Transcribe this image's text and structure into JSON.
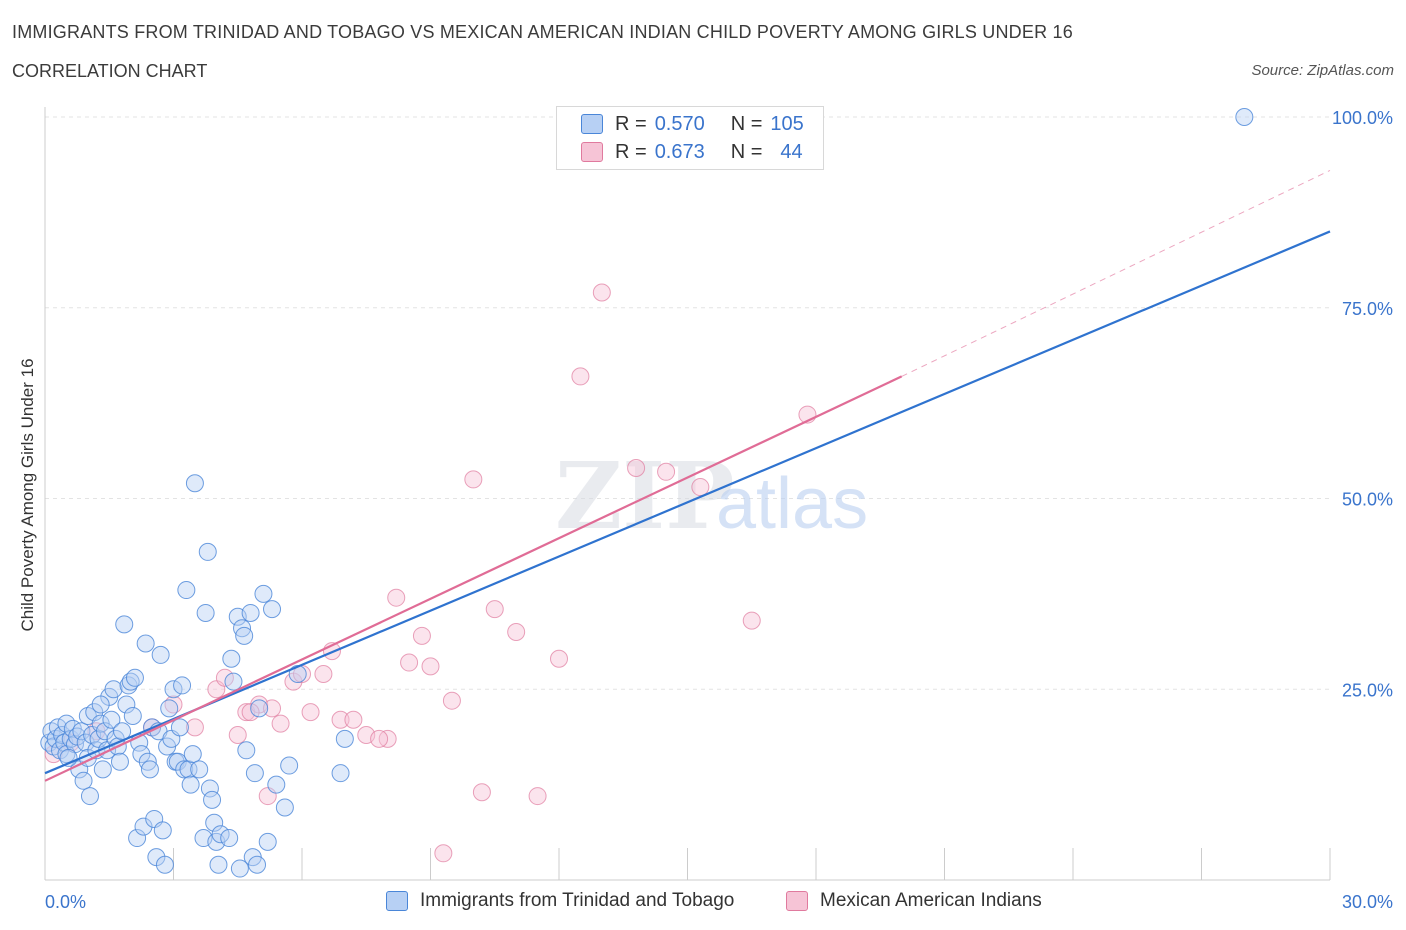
{
  "title": "IMMIGRANTS FROM TRINIDAD AND TOBAGO VS MEXICAN AMERICAN INDIAN CHILD POVERTY AMONG GIRLS UNDER 16",
  "subtitle": "CORRELATION CHART",
  "source": "Source: ZipAtlas.com",
  "watermark": {
    "zip": "ZIP",
    "atlas": "atlas"
  },
  "legend_top": {
    "rows": [
      {
        "r_label": "R = ",
        "r_value": "0.570",
        "n_label": "N = ",
        "n_value": "105"
      },
      {
        "r_label": "R = ",
        "r_value": "0.673",
        "n_label": "N = ",
        "n_value": "44"
      }
    ]
  },
  "chart_data": {
    "type": "scatter",
    "xlabel": "",
    "ylabel": "Child Poverty Among Girls Under 16",
    "xlim": [
      0,
      30
    ],
    "ylim": [
      0,
      100
    ],
    "x_tick_labels": [
      "0.0%",
      "30.0%"
    ],
    "y_tick_labels": [
      "25.0%",
      "50.0%",
      "75.0%",
      "100.0%"
    ],
    "y_ticks": [
      25,
      50,
      75,
      100
    ],
    "grid": true,
    "legend_placement": "bottom",
    "colors": {
      "blue": "#4a86d8",
      "blue_fill": "#b7d0f4",
      "pink": "#e07a9e",
      "pink_fill": "#f6c4d6",
      "blue_line": "#2f73cf",
      "pink_line": "#e06c96",
      "axis_text": "#3a74cc"
    },
    "series": [
      {
        "name": "Immigrants from Trinidad and Tobago",
        "color": "blue",
        "trend": {
          "x0": 0,
          "y0": 14.0,
          "x1": 30,
          "y1": 85.0
        },
        "points": [
          [
            0.1,
            18
          ],
          [
            0.15,
            19.5
          ],
          [
            0.2,
            17.5
          ],
          [
            0.25,
            18.5
          ],
          [
            0.3,
            20
          ],
          [
            0.35,
            17
          ],
          [
            0.4,
            19
          ],
          [
            0.45,
            18
          ],
          [
            0.5,
            16.5
          ],
          [
            0.5,
            20.5
          ],
          [
            0.6,
            18.5
          ],
          [
            0.65,
            19.8
          ],
          [
            0.7,
            17.8
          ],
          [
            0.75,
            18.8
          ],
          [
            0.8,
            14.5
          ],
          [
            0.85,
            19.5
          ],
          [
            0.9,
            13
          ],
          [
            0.95,
            18
          ],
          [
            1.0,
            16
          ],
          [
            1.0,
            21.5
          ],
          [
            1.05,
            11
          ],
          [
            1.1,
            19
          ],
          [
            1.15,
            22
          ],
          [
            1.2,
            17
          ],
          [
            1.25,
            18.5
          ],
          [
            1.3,
            20.5
          ],
          [
            1.35,
            14.5
          ],
          [
            1.4,
            19.5
          ],
          [
            1.45,
            17
          ],
          [
            1.5,
            24
          ],
          [
            1.55,
            21
          ],
          [
            1.6,
            25
          ],
          [
            1.65,
            18.5
          ],
          [
            1.7,
            17.5
          ],
          [
            1.75,
            15.5
          ],
          [
            1.8,
            19.5
          ],
          [
            1.85,
            33.5
          ],
          [
            1.9,
            23
          ],
          [
            1.95,
            25.5
          ],
          [
            2.0,
            26
          ],
          [
            2.05,
            21.5
          ],
          [
            2.1,
            26.5
          ],
          [
            2.15,
            5.5
          ],
          [
            2.2,
            18
          ],
          [
            2.25,
            16.5
          ],
          [
            2.3,
            7
          ],
          [
            2.35,
            31
          ],
          [
            2.4,
            15.5
          ],
          [
            2.45,
            14.5
          ],
          [
            2.5,
            20
          ],
          [
            2.55,
            8
          ],
          [
            2.6,
            3
          ],
          [
            2.65,
            19.5
          ],
          [
            2.7,
            29.5
          ],
          [
            2.75,
            6.5
          ],
          [
            2.8,
            2
          ],
          [
            2.85,
            17.5
          ],
          [
            2.9,
            22.5
          ],
          [
            2.95,
            18.5
          ],
          [
            3.0,
            25
          ],
          [
            3.05,
            15.5
          ],
          [
            3.1,
            15.5
          ],
          [
            3.15,
            20
          ],
          [
            3.2,
            25.5
          ],
          [
            3.25,
            14.5
          ],
          [
            3.3,
            38
          ],
          [
            3.35,
            14.5
          ],
          [
            3.4,
            12.5
          ],
          [
            3.45,
            16.5
          ],
          [
            3.5,
            52
          ],
          [
            3.6,
            14.5
          ],
          [
            3.7,
            5.5
          ],
          [
            3.75,
            35
          ],
          [
            3.8,
            43
          ],
          [
            3.85,
            12
          ],
          [
            3.9,
            10.5
          ],
          [
            3.95,
            7.5
          ],
          [
            4.0,
            5
          ],
          [
            4.05,
            2
          ],
          [
            4.1,
            6
          ],
          [
            4.3,
            5.5
          ],
          [
            4.35,
            29
          ],
          [
            4.4,
            26
          ],
          [
            4.5,
            34.5
          ],
          [
            4.55,
            1.5
          ],
          [
            4.6,
            33
          ],
          [
            4.65,
            32
          ],
          [
            4.7,
            17
          ],
          [
            4.8,
            35
          ],
          [
            4.85,
            3
          ],
          [
            4.9,
            14
          ],
          [
            4.95,
            2
          ],
          [
            5.0,
            22.5
          ],
          [
            5.1,
            37.5
          ],
          [
            5.2,
            5
          ],
          [
            5.3,
            35.5
          ],
          [
            5.4,
            12.5
          ],
          [
            5.6,
            9.5
          ],
          [
            5.7,
            15
          ],
          [
            5.9,
            27
          ],
          [
            6.9,
            14
          ],
          [
            7.0,
            18.5
          ],
          [
            28.0,
            100
          ],
          [
            0.55,
            16
          ],
          [
            1.3,
            23
          ]
        ]
      },
      {
        "name": "Mexican American Indians",
        "color": "pink",
        "trend": {
          "x0": 0,
          "y0": 13.0,
          "x1": 20,
          "y1": 66.0,
          "dash_to": {
            "x": 30,
            "y": 93.0
          }
        },
        "points": [
          [
            0.2,
            16.5
          ],
          [
            0.6,
            18
          ],
          [
            1.2,
            19.5
          ],
          [
            2.5,
            20
          ],
          [
            3.0,
            23
          ],
          [
            3.5,
            20
          ],
          [
            4.0,
            25
          ],
          [
            4.2,
            26.5
          ],
          [
            4.5,
            19
          ],
          [
            4.7,
            22
          ],
          [
            5.0,
            23
          ],
          [
            5.3,
            22.5
          ],
          [
            5.8,
            26
          ],
          [
            6.0,
            27
          ],
          [
            6.5,
            27
          ],
          [
            6.7,
            30
          ],
          [
            6.9,
            21
          ],
          [
            5.5,
            20.5
          ],
          [
            7.2,
            21
          ],
          [
            7.5,
            19
          ],
          [
            8.0,
            18.5
          ],
          [
            8.2,
            37
          ],
          [
            8.5,
            28.5
          ],
          [
            8.8,
            32
          ],
          [
            9.0,
            28
          ],
          [
            9.5,
            23.5
          ],
          [
            10.0,
            52.5
          ],
          [
            10.5,
            35.5
          ],
          [
            11.0,
            32.5
          ],
          [
            12.0,
            29
          ],
          [
            12.5,
            66
          ],
          [
            13.0,
            77
          ],
          [
            13.8,
            54
          ],
          [
            14.5,
            53.5
          ],
          [
            15.3,
            51.5
          ],
          [
            16.5,
            34
          ],
          [
            17.8,
            61
          ],
          [
            7.8,
            18.5
          ],
          [
            10.2,
            11.5
          ],
          [
            11.5,
            11
          ],
          [
            9.3,
            3.5
          ],
          [
            5.2,
            11
          ],
          [
            4.8,
            22
          ],
          [
            6.2,
            22
          ]
        ]
      }
    ]
  },
  "legend_bottom": {
    "items": [
      {
        "label": "Immigrants from Trinidad and Tobago"
      },
      {
        "label": "Mexican American Indians"
      }
    ]
  }
}
